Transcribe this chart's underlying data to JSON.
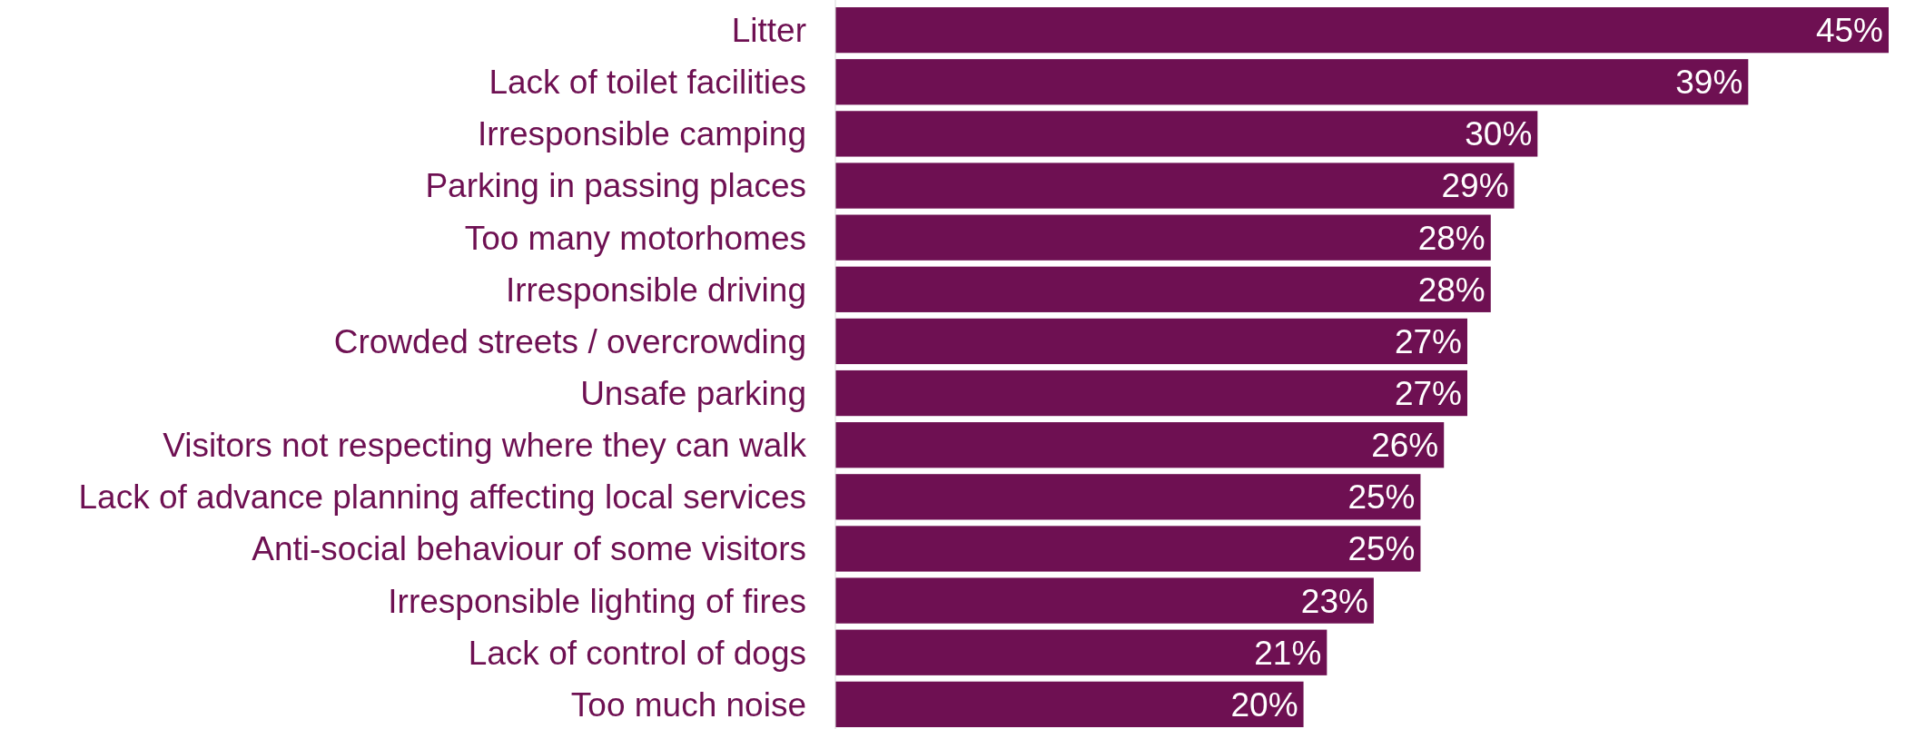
{
  "chart_data": {
    "type": "bar",
    "orientation": "horizontal",
    "categories": [
      "Litter",
      "Lack of toilet facilities",
      "Irresponsible camping",
      "Parking in passing places",
      "Too many motorhomes",
      "Irresponsible driving",
      "Crowded streets / overcrowding",
      "Unsafe parking",
      "Visitors not respecting where they can walk",
      "Lack of advance planning affecting local services",
      "Anti-social behaviour of some visitors",
      "Irresponsible lighting of fires",
      "Lack of control of dogs",
      "Too much noise"
    ],
    "values": [
      45,
      39,
      30,
      29,
      28,
      28,
      27,
      27,
      26,
      25,
      25,
      23,
      21,
      20
    ],
    "color": "#6e1052",
    "data_labels": true,
    "value_labels": [
      "45%",
      "39%",
      "30%",
      "29%",
      "28%",
      "28%",
      "27%",
      "27%",
      "26%",
      "25%",
      "25%",
      "23%",
      "21%",
      "20%"
    ]
  }
}
